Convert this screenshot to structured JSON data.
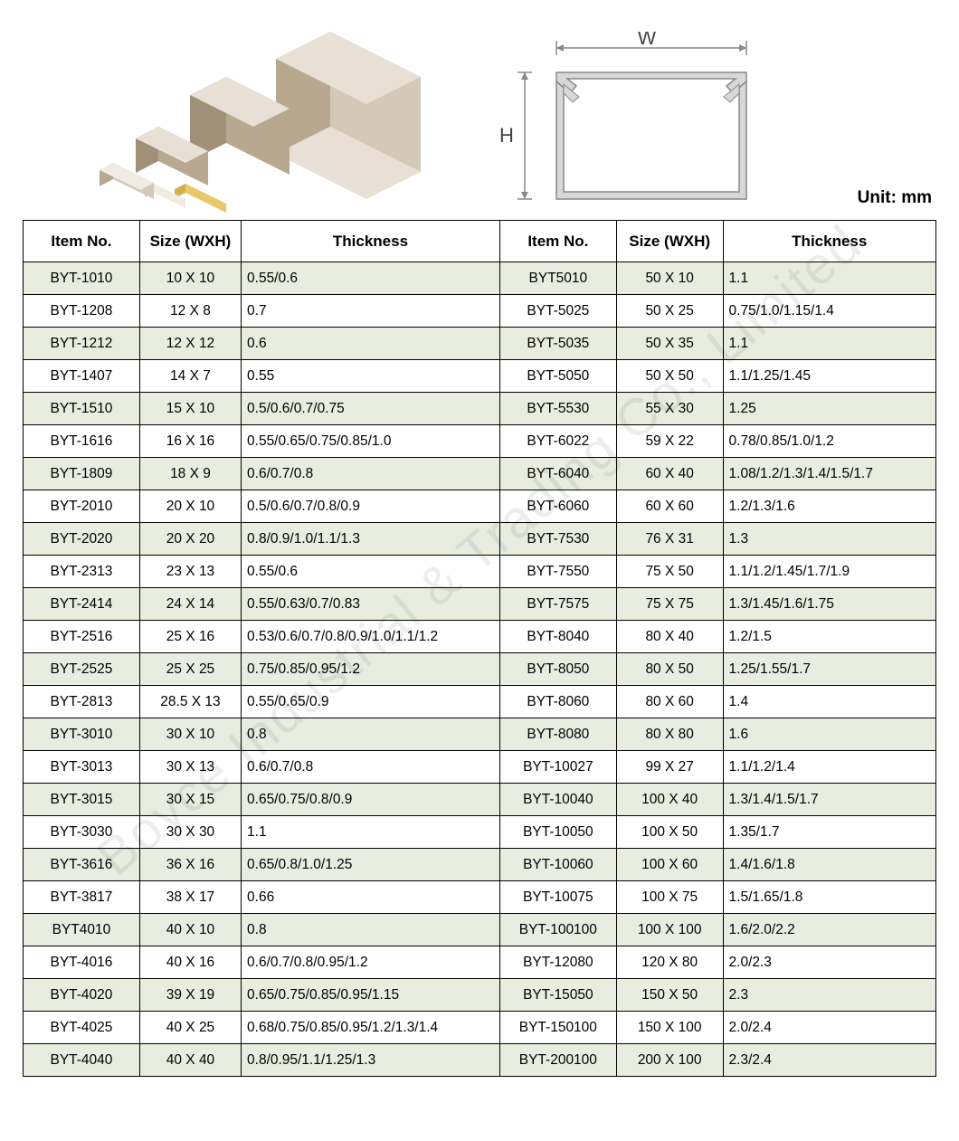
{
  "unit_label": "Unit: mm",
  "diagram": {
    "w_label": "W",
    "h_label": "H",
    "stroke_color": "#888888",
    "fill_color": "#d8d8d8",
    "label_color": "#666666"
  },
  "product_colors": {
    "light": "#e8e0d5",
    "mid": "#d4c8b8",
    "dark": "#b8a890",
    "darker": "#a09078",
    "yellow": "#e8c868"
  },
  "watermark": "Boyce Industrial & Trading Co., Limited",
  "table": {
    "headers": [
      "Item No.",
      "Size (WXH)",
      "Thickness",
      "Item No.",
      "Size (WXH)",
      "Thickness"
    ],
    "rows": [
      [
        "BYT-1010",
        "10 X 10",
        "0.55/0.6",
        "BYT5010",
        "50 X 10",
        "1.1"
      ],
      [
        "BYT-1208",
        "12 X 8",
        "0.7",
        "BYT-5025",
        "50 X 25",
        "0.75/1.0/1.15/1.4"
      ],
      [
        "BYT-1212",
        "12 X 12",
        "0.6",
        "BYT-5035",
        "50 X 35",
        "1.1"
      ],
      [
        "BYT-1407",
        "14 X 7",
        "0.55",
        "BYT-5050",
        "50 X 50",
        "1.1/1.25/1.45"
      ],
      [
        "BYT-1510",
        "15 X 10",
        "0.5/0.6/0.7/0.75",
        "BYT-5530",
        "55 X 30",
        "1.25"
      ],
      [
        "BYT-1616",
        "16 X 16",
        "0.55/0.65/0.75/0.85/1.0",
        "BYT-6022",
        "59 X 22",
        "0.78/0.85/1.0/1.2"
      ],
      [
        "BYT-1809",
        "18 X 9",
        "0.6/0.7/0.8",
        "BYT-6040",
        "60 X 40",
        "1.08/1.2/1.3/1.4/1.5/1.7"
      ],
      [
        "BYT-2010",
        "20 X 10",
        "0.5/0.6/0.7/0.8/0.9",
        "BYT-6060",
        "60 X 60",
        "1.2/1.3/1.6"
      ],
      [
        "BYT-2020",
        "20 X 20",
        "0.8/0.9/1.0/1.1/1.3",
        "BYT-7530",
        "76 X 31",
        "1.3"
      ],
      [
        "BYT-2313",
        "23 X 13",
        "0.55/0.6",
        "BYT-7550",
        "75 X 50",
        "1.1/1.2/1.45/1.7/1.9"
      ],
      [
        "BYT-2414",
        "24 X 14",
        "0.55/0.63/0.7/0.83",
        "BYT-7575",
        "75 X 75",
        "1.3/1.45/1.6/1.75"
      ],
      [
        "BYT-2516",
        "25 X 16",
        "0.53/0.6/0.7/0.8/0.9/1.0/1.1/1.2",
        "BYT-8040",
        "80 X 40",
        "1.2/1.5"
      ],
      [
        "BYT-2525",
        "25 X 25",
        "0.75/0.85/0.95/1.2",
        "BYT-8050",
        "80 X 50",
        "1.25/1.55/1.7"
      ],
      [
        "BYT-2813",
        "28.5 X 13",
        "0.55/0.65/0.9",
        "BYT-8060",
        "80 X 60",
        "1.4"
      ],
      [
        "BYT-3010",
        "30 X 10",
        "0.8",
        "BYT-8080",
        "80 X 80",
        "1.6"
      ],
      [
        "BYT-3013",
        "30 X 13",
        "0.6/0.7/0.8",
        "BYT-10027",
        "99 X 27",
        "1.1/1.2/1.4"
      ],
      [
        "BYT-3015",
        "30 X 15",
        "0.65/0.75/0.8/0.9",
        "BYT-10040",
        "100 X 40",
        "1.3/1.4/1.5/1.7"
      ],
      [
        "BYT-3030",
        "30 X 30",
        "1.1",
        "BYT-10050",
        "100 X 50",
        "1.35/1.7"
      ],
      [
        "BYT-3616",
        "36 X 16",
        "0.65/0.8/1.0/1.25",
        "BYT-10060",
        "100 X 60",
        "1.4/1.6/1.8"
      ],
      [
        "BYT-3817",
        "38 X 17",
        "0.66",
        "BYT-10075",
        "100 X 75",
        "1.5/1.65/1.8"
      ],
      [
        "BYT4010",
        "40 X 10",
        "0.8",
        "BYT-100100",
        "100 X 100",
        "1.6/2.0/2.2"
      ],
      [
        "BYT-4016",
        "40 X 16",
        "0.6/0.7/0.8/0.95/1.2",
        "BYT-12080",
        "120 X 80",
        "2.0/2.3"
      ],
      [
        "BYT-4020",
        "39 X 19",
        "0.65/0.75/0.85/0.95/1.15",
        "BYT-15050",
        "150 X 50",
        "2.3"
      ],
      [
        "BYT-4025",
        "40 X 25",
        "0.68/0.75/0.85/0.95/1.2/1.3/1.4",
        "BYT-150100",
        "150 X 100",
        "2.0/2.4"
      ],
      [
        "BYT-4040",
        "40 X 40",
        "0.8/0.95/1.1/1.25/1.3",
        "BYT-200100",
        "200 X 100",
        "2.3/2.4"
      ]
    ]
  }
}
